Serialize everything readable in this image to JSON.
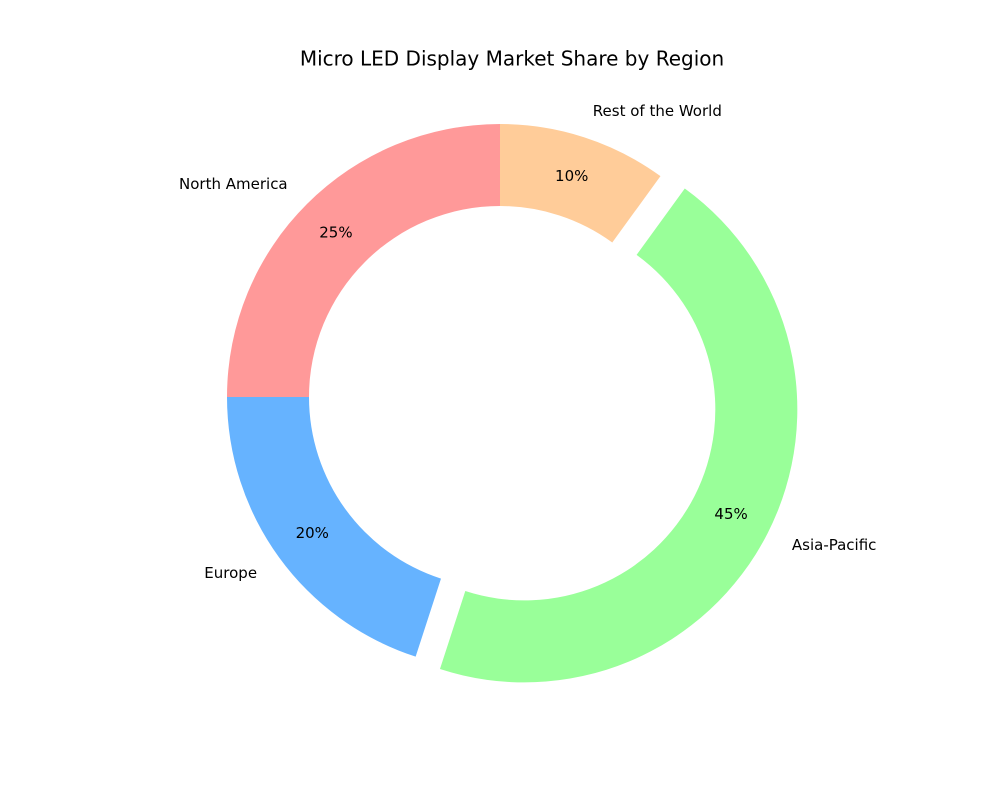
{
  "chart_data": {
    "type": "donut",
    "title": "Micro LED Display Market Share by Region",
    "categories": [
      "North America",
      "Europe",
      "Asia-Pacific",
      "Rest of the World"
    ],
    "values": [
      25,
      20,
      45,
      10
    ],
    "value_labels": [
      "25%",
      "20%",
      "45%",
      "10%"
    ],
    "colors": [
      "#ff9999",
      "#66b3ff",
      "#99ff99",
      "#ffcc99"
    ],
    "explode": [
      0,
      0,
      0.1,
      0
    ]
  }
}
